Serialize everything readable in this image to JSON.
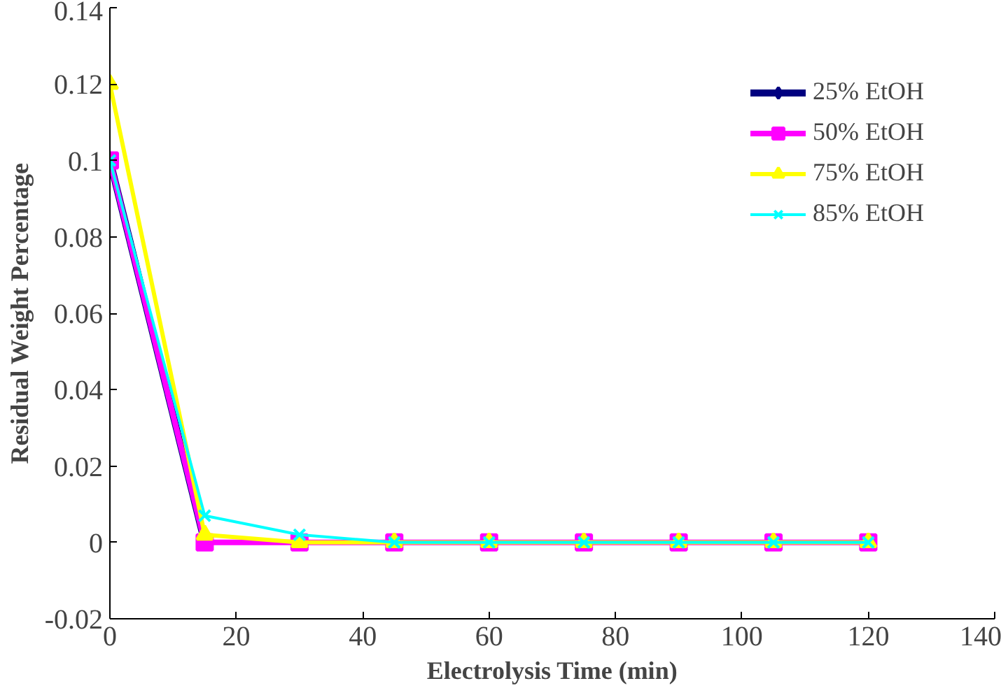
{
  "chart_data": {
    "type": "line",
    "xlabel": "Electrolysis Time (min)",
    "ylabel": "Residual Weight Percentage",
    "x": [
      0,
      15,
      30,
      45,
      60,
      75,
      90,
      105,
      120
    ],
    "series": [
      {
        "name": "25% EtOH",
        "color": "#000080",
        "marker": "diamond",
        "values": [
          0.1,
          0,
          null,
          null,
          null,
          null,
          null,
          null,
          null
        ]
      },
      {
        "name": "50% EtOH",
        "color": "#ff00ff",
        "marker": "square",
        "values": [
          0.1,
          0,
          0,
          0,
          0,
          0,
          0,
          0,
          0
        ]
      },
      {
        "name": "75% EtOH",
        "color": "#ffff00",
        "marker": "triangle",
        "values": [
          0.12,
          0.002,
          0,
          0,
          0,
          0,
          0,
          0,
          0
        ]
      },
      {
        "name": "85% EtOH",
        "color": "#00ffff",
        "marker": "cross",
        "values": [
          0.1,
          0.007,
          0.002,
          0,
          0,
          0,
          0,
          0,
          0
        ]
      }
    ],
    "xlim": [
      0,
      140
    ],
    "xticks": [
      0,
      20,
      40,
      60,
      80,
      100,
      120,
      140
    ],
    "ylim": [
      -0.02,
      0.14
    ],
    "yticks": [
      -0.02,
      0,
      0.02,
      0.04,
      0.06,
      0.08,
      0.1,
      0.12,
      0.14
    ],
    "grid": false,
    "legend": "top right"
  }
}
